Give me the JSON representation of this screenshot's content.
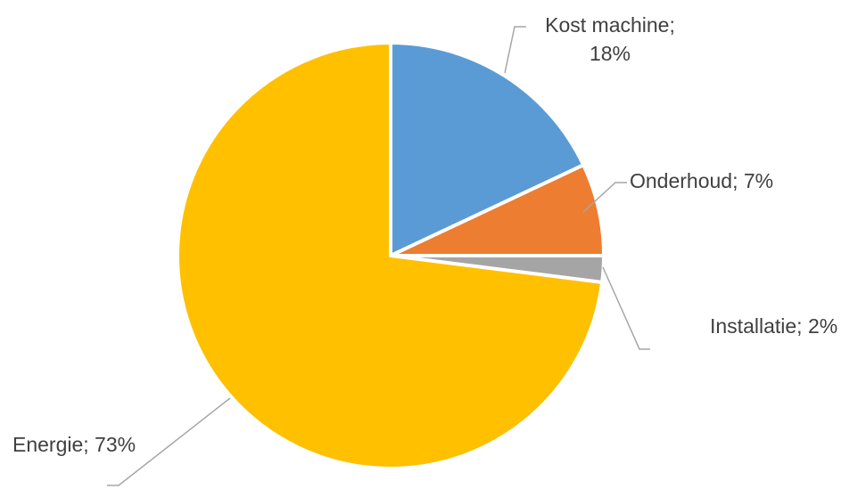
{
  "chart_data": {
    "type": "pie",
    "title": "",
    "start_angle_deg": 0,
    "direction": "clockwise",
    "slices": [
      {
        "name": "Kost machine",
        "value": 18,
        "color": "#5b9bd5",
        "label_lines": [
          "Kost machine;",
          "18%"
        ]
      },
      {
        "name": "Onderhoud",
        "value": 7,
        "color": "#ed7d31",
        "label_lines": [
          "Onderhoud; 7%"
        ]
      },
      {
        "name": "Installatie",
        "value": 2,
        "color": "#a5a5a5",
        "label_lines": [
          "Installatie; 2%"
        ]
      },
      {
        "name": "Energie",
        "value": 73,
        "color": "#ffc000",
        "label_lines": [
          "Energie; 73%"
        ]
      }
    ],
    "legend": "none",
    "data_labels": "outside-with-leader-lines"
  }
}
